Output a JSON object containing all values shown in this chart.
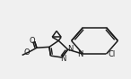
{
  "bg_color": "#f0f0f0",
  "line_color": "#1a1a1a",
  "lw": 1.1,
  "figsize": [
    1.46,
    0.88
  ],
  "dpi": 100,
  "atoms": {
    "N1_label": "N",
    "N2_label": "N",
    "N_py_label": "N",
    "Cl_label": "Cl",
    "O1_label": "O",
    "O2_label": "O",
    "CH3_label": "O"
  },
  "font_size": 5.5
}
